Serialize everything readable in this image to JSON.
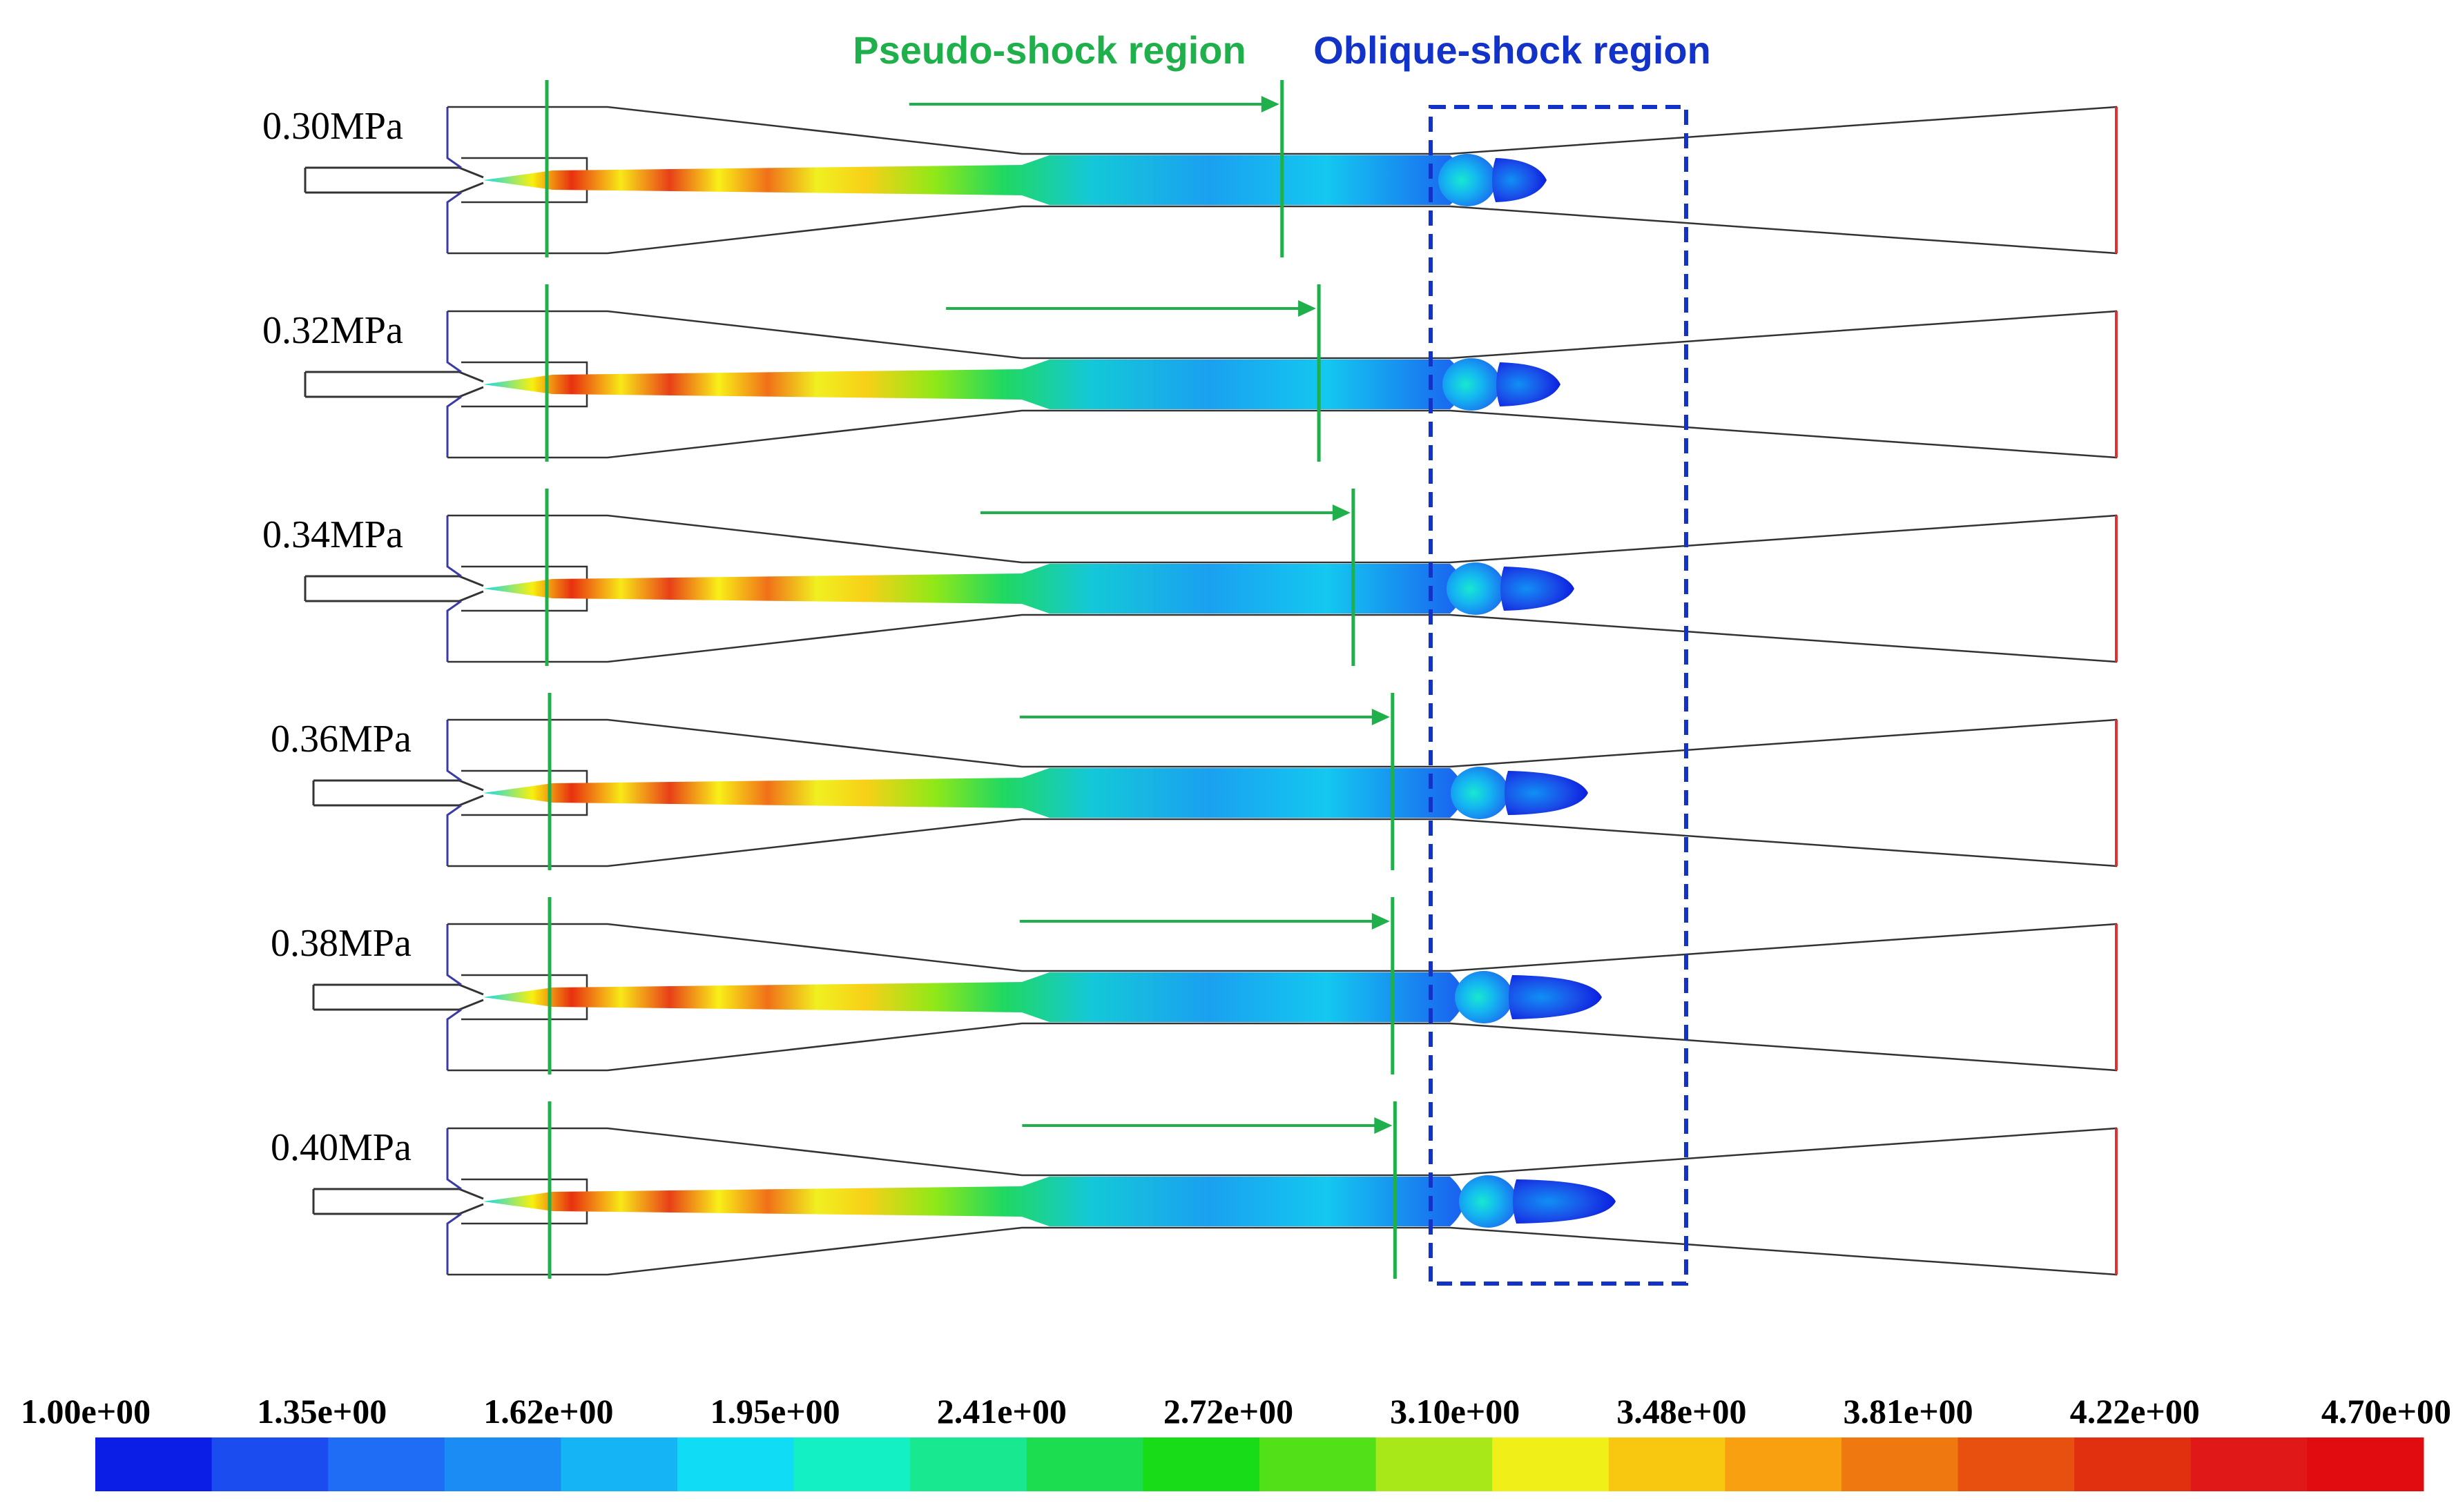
{
  "labels": {
    "pseudo_shock": "Pseudo-shock region",
    "oblique_shock": "Oblique-shock region"
  },
  "colors": {
    "pseudo": "#1fb04c",
    "oblique": "#1232c8",
    "outline": "#333333",
    "wall_left": "#3a3aa8",
    "exit": "#e03030"
  },
  "cases": [
    {
      "pressure": "0.30MPa",
      "shock_front_position": 0.522
    },
    {
      "pressure": "0.32MPa",
      "shock_front_position": 0.537
    },
    {
      "pressure": "0.34MPa",
      "shock_front_position": 0.551
    },
    {
      "pressure": "0.36MPa",
      "shock_front_position": 0.567
    },
    {
      "pressure": "0.38MPa",
      "shock_front_position": 0.567
    },
    {
      "pressure": "0.40MPa",
      "shock_front_position": 0.568
    }
  ],
  "colorbar": {
    "ticks": [
      "1.00e+00",
      "1.35e+00",
      "1.62e+00",
      "1.95e+00",
      "2.41e+00",
      "2.72e+00",
      "3.10e+00",
      "3.48e+00",
      "3.81e+00",
      "4.22e+00",
      "4.70e+00"
    ],
    "colors": [
      "#0a1ee6",
      "#1a4cf0",
      "#1f6cf5",
      "#1c8cf5",
      "#14b4f5",
      "#10dcf5",
      "#12f0c4",
      "#18e890",
      "#1cdc50",
      "#18dc18",
      "#52e018",
      "#a8e818",
      "#f0f018",
      "#f8c810",
      "#f8a010",
      "#f07810",
      "#e85010",
      "#e03010",
      "#e01818",
      "#e00c10"
    ]
  }
}
